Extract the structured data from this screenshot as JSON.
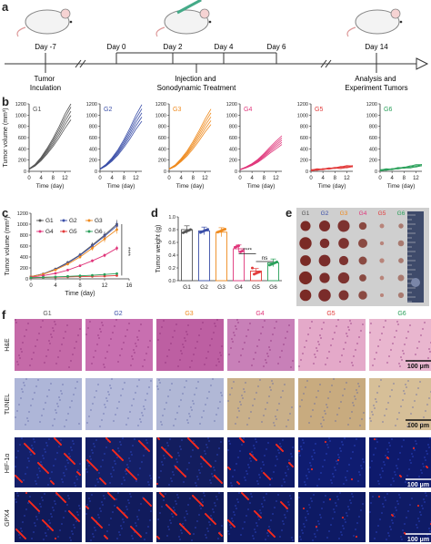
{
  "panel_labels": {
    "a": "a",
    "b": "b",
    "c": "c",
    "d": "d",
    "e": "e",
    "f": "f"
  },
  "timeline": {
    "days": [
      "Day -7",
      "Day 0",
      "Day 2",
      "Day 4",
      "Day 6",
      "Day 14"
    ],
    "events": [
      "Tumor\nInculation",
      "Injection and\nSonodynamic Treatment",
      "Analysis and\nExperiment Tumors"
    ]
  },
  "groups": [
    "G1",
    "G2",
    "G3",
    "G4",
    "G5",
    "G6"
  ],
  "group_colors": [
    "#555555",
    "#3b4fa8",
    "#ef8a1d",
    "#e0357a",
    "#e23a3a",
    "#2aa05a"
  ],
  "panel_b": {
    "ylabel": "Tumor volume (mm³)",
    "xlabel": "Time (day)",
    "yticks": [
      "0",
      "200",
      "400",
      "600",
      "800",
      "1000",
      "1200"
    ],
    "xticks": [
      "0",
      "4",
      "8",
      "12"
    ]
  },
  "panel_c": {
    "ylabel": "Tumor volume (mm³)",
    "xlabel": "Time (day)",
    "yticks": [
      "0",
      "200",
      "400",
      "600",
      "800",
      "1000",
      "1200"
    ],
    "xticks": [
      "0",
      "4",
      "8",
      "12",
      "16"
    ],
    "sig_label": "****"
  },
  "panel_d": {
    "ylabel": "Tumor weight (g)",
    "yticks": [
      "0.0",
      "0.2",
      "0.4",
      "0.6",
      "0.8",
      "1.0"
    ],
    "sig1": "****",
    "sig2": "ns"
  },
  "panel_f": {
    "rows": [
      "H&E",
      "TUNEL",
      "HIF-1α",
      "GPX4"
    ],
    "scalebar": "100 μm"
  },
  "chart_data": [
    {
      "type": "line",
      "panel": "b",
      "x": [
        0,
        2,
        4,
        6,
        8,
        10,
        12,
        14
      ],
      "ylim": [
        0,
        1200
      ],
      "series": [
        {
          "name": "G1",
          "values": [
            40,
            110,
            220,
            360,
            520,
            700,
            900,
            1080
          ]
        },
        {
          "name": "G2",
          "values": [
            40,
            110,
            210,
            340,
            500,
            680,
            880,
            1050
          ]
        },
        {
          "name": "G3",
          "values": [
            40,
            100,
            200,
            320,
            470,
            640,
            820,
            980
          ]
        },
        {
          "name": "G4",
          "values": [
            30,
            70,
            120,
            190,
            280,
            380,
            470,
            560
          ]
        },
        {
          "name": "G5",
          "values": [
            20,
            30,
            40,
            50,
            60,
            70,
            80,
            90
          ]
        },
        {
          "name": "G6",
          "values": [
            20,
            30,
            40,
            55,
            65,
            80,
            95,
            110
          ]
        }
      ]
    },
    {
      "type": "line",
      "panel": "c",
      "x": [
        0,
        2,
        4,
        6,
        8,
        10,
        12,
        14
      ],
      "ylim": [
        0,
        1200
      ],
      "series": [
        {
          "name": "G1",
          "values": [
            40,
            90,
            180,
            300,
            440,
            620,
            800,
            1000
          ]
        },
        {
          "name": "G2",
          "values": [
            40,
            90,
            175,
            290,
            430,
            600,
            780,
            970
          ]
        },
        {
          "name": "G3",
          "values": [
            40,
            85,
            165,
            270,
            400,
            560,
            730,
            900
          ]
        },
        {
          "name": "G4",
          "values": [
            30,
            60,
            100,
            160,
            240,
            330,
            430,
            560
          ]
        },
        {
          "name": "G5",
          "values": [
            20,
            25,
            30,
            35,
            40,
            45,
            50,
            60
          ]
        },
        {
          "name": "G6",
          "values": [
            20,
            28,
            36,
            45,
            55,
            65,
            80,
            95
          ]
        }
      ]
    },
    {
      "type": "bar",
      "panel": "d",
      "categories": [
        "G1",
        "G2",
        "G3",
        "G4",
        "G5",
        "G6"
      ],
      "values": [
        0.8,
        0.78,
        0.76,
        0.5,
        0.15,
        0.28
      ],
      "errors": [
        0.06,
        0.06,
        0.07,
        0.06,
        0.04,
        0.06
      ],
      "ylim": [
        0,
        1.0
      ]
    }
  ]
}
